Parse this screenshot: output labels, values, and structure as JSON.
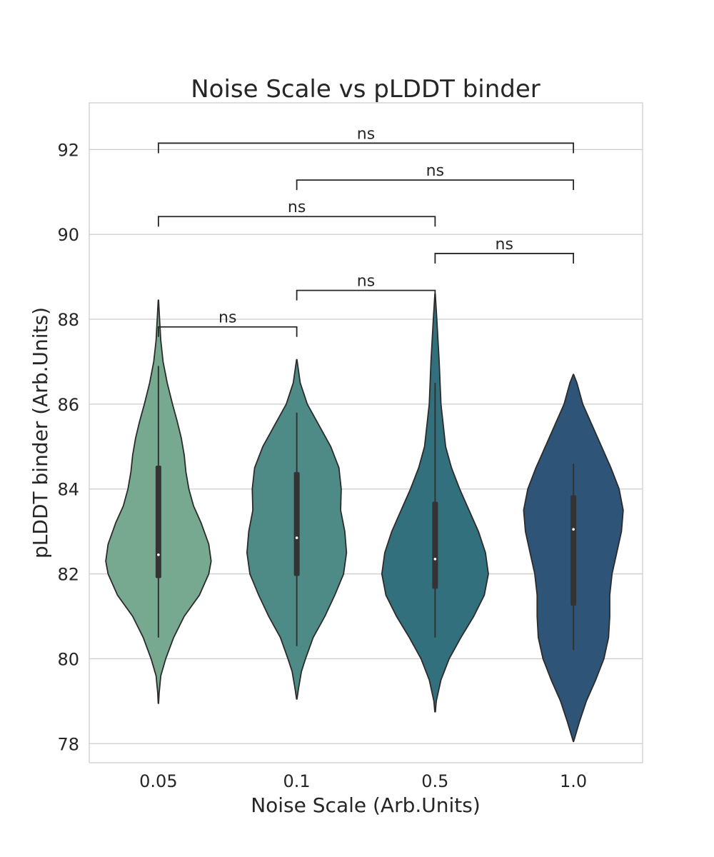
{
  "chart_data": {
    "type": "violin",
    "title": "Noise Scale vs pLDDT binder",
    "xlabel": "Noise Scale (Arb.Units)",
    "ylabel": "pLDDT binder (Arb.Units)",
    "categories": [
      "0.05",
      "0.1",
      "0.5",
      "1.0"
    ],
    "ylim": [
      77.55,
      93.1
    ],
    "yticks": [
      78,
      80,
      82,
      84,
      86,
      88,
      90,
      92
    ],
    "grid": true,
    "colors": [
      "#77a990",
      "#4e8b86",
      "#33707d",
      "#2e5477"
    ],
    "violins": [
      {
        "category": "0.05",
        "min": 78.95,
        "max": 88.45,
        "box": {
          "q1": 81.9,
          "median": 82.45,
          "q3": 84.55,
          "whisker_low": 80.5,
          "whisker_high": 86.9
        },
        "profile": [
          [
            78.95,
            0.003
          ],
          [
            79.2,
            0.012
          ],
          [
            79.6,
            0.04
          ],
          [
            80.0,
            0.125
          ],
          [
            80.5,
            0.26
          ],
          [
            81.0,
            0.44
          ],
          [
            81.5,
            0.7
          ],
          [
            82.0,
            0.86
          ],
          [
            82.3,
            0.9
          ],
          [
            82.7,
            0.86
          ],
          [
            83.2,
            0.73
          ],
          [
            83.6,
            0.6
          ],
          [
            84.0,
            0.52
          ],
          [
            84.4,
            0.47
          ],
          [
            84.8,
            0.44
          ],
          [
            85.2,
            0.39
          ],
          [
            85.6,
            0.32
          ],
          [
            86.0,
            0.24
          ],
          [
            86.5,
            0.15
          ],
          [
            87.0,
            0.08
          ],
          [
            87.5,
            0.04
          ],
          [
            88.0,
            0.02
          ],
          [
            88.45,
            0.003
          ]
        ]
      },
      {
        "category": "0.1",
        "min": 79.05,
        "max": 87.05,
        "box": {
          "q1": 81.95,
          "median": 82.85,
          "q3": 84.4,
          "whisker_low": 80.3,
          "whisker_high": 85.8
        },
        "profile": [
          [
            79.05,
            0.003
          ],
          [
            79.3,
            0.03
          ],
          [
            79.7,
            0.08
          ],
          [
            80.0,
            0.15
          ],
          [
            80.5,
            0.28
          ],
          [
            81.0,
            0.48
          ],
          [
            81.5,
            0.65
          ],
          [
            82.0,
            0.8
          ],
          [
            82.5,
            0.85
          ],
          [
            83.0,
            0.82
          ],
          [
            83.5,
            0.75
          ],
          [
            84.0,
            0.76
          ],
          [
            84.5,
            0.72
          ],
          [
            85.0,
            0.58
          ],
          [
            85.5,
            0.38
          ],
          [
            86.0,
            0.18
          ],
          [
            86.5,
            0.06
          ],
          [
            87.05,
            0.003
          ]
        ]
      },
      {
        "category": "0.5",
        "min": 78.75,
        "max": 88.6,
        "box": {
          "q1": 81.65,
          "median": 82.35,
          "q3": 83.7,
          "whisker_low": 80.5,
          "whisker_high": 86.5
        },
        "profile": [
          [
            78.75,
            0.005
          ],
          [
            79.0,
            0.02
          ],
          [
            79.5,
            0.1
          ],
          [
            80.0,
            0.24
          ],
          [
            80.5,
            0.44
          ],
          [
            81.0,
            0.66
          ],
          [
            81.5,
            0.84
          ],
          [
            82.0,
            0.91
          ],
          [
            82.5,
            0.86
          ],
          [
            83.0,
            0.74
          ],
          [
            83.5,
            0.58
          ],
          [
            84.0,
            0.42
          ],
          [
            84.5,
            0.28
          ],
          [
            85.0,
            0.18
          ],
          [
            86.0,
            0.1
          ],
          [
            87.0,
            0.07
          ],
          [
            88.0,
            0.03
          ],
          [
            88.6,
            0.003
          ]
        ]
      },
      {
        "category": "1.0",
        "min": 78.05,
        "max": 86.7,
        "box": {
          "q1": 81.25,
          "median": 83.05,
          "q3": 83.85,
          "whisker_low": 80.2,
          "whisker_high": 84.6
        },
        "profile": [
          [
            78.05,
            0.003
          ],
          [
            78.5,
            0.1
          ],
          [
            79.0,
            0.22
          ],
          [
            79.5,
            0.38
          ],
          [
            80.0,
            0.52
          ],
          [
            80.5,
            0.6
          ],
          [
            81.0,
            0.62
          ],
          [
            81.5,
            0.62
          ],
          [
            82.0,
            0.66
          ],
          [
            82.5,
            0.74
          ],
          [
            83.0,
            0.82
          ],
          [
            83.5,
            0.85
          ],
          [
            84.0,
            0.78
          ],
          [
            84.5,
            0.64
          ],
          [
            85.0,
            0.48
          ],
          [
            85.5,
            0.32
          ],
          [
            86.0,
            0.16
          ],
          [
            86.5,
            0.06
          ],
          [
            86.7,
            0.003
          ]
        ]
      }
    ],
    "annotations": [
      {
        "from": "0.05",
        "to": "0.1",
        "y": 87.82,
        "text": "ns"
      },
      {
        "from": "0.1",
        "to": "0.5",
        "y": 88.68,
        "text": "ns"
      },
      {
        "from": "0.5",
        "to": "1.0",
        "y": 89.55,
        "text": "ns"
      },
      {
        "from": "0.05",
        "to": "0.5",
        "y": 90.42,
        "text": "ns"
      },
      {
        "from": "0.1",
        "to": "1.0",
        "y": 91.28,
        "text": "ns"
      },
      {
        "from": "0.05",
        "to": "1.0",
        "y": 92.15,
        "text": "ns"
      }
    ]
  }
}
